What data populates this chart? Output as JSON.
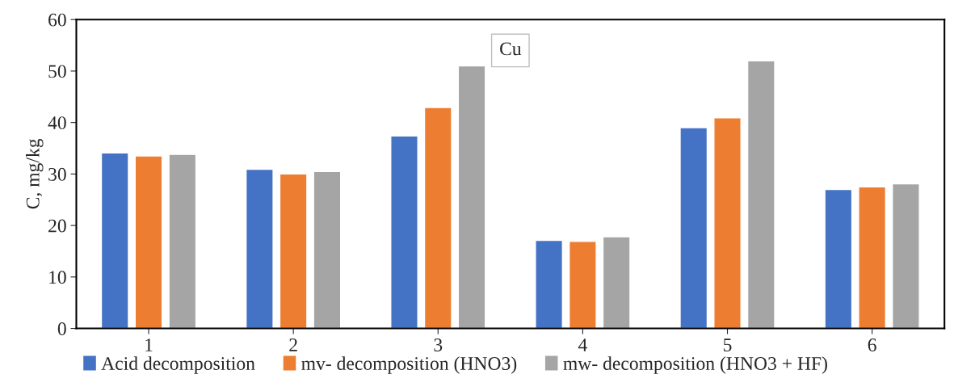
{
  "chart_data": {
    "type": "bar",
    "ylabel": "C, mg/kg",
    "categories": [
      "1",
      "2",
      "3",
      "4",
      "5",
      "6"
    ],
    "series": [
      {
        "name": "Acid decomposition",
        "color": "#4472c4",
        "values": [
          34.1,
          30.9,
          37.4,
          17.1,
          39.0,
          27.0
        ]
      },
      {
        "name": "mv- decomposition (HNO3)",
        "color": "#ed7d31",
        "values": [
          33.5,
          30.0,
          42.9,
          16.9,
          40.9,
          27.5
        ]
      },
      {
        "name": "mw- decomposition (HNO3 + HF)",
        "color": "#a5a5a5",
        "values": [
          33.8,
          30.5,
          51.0,
          17.8,
          52.0,
          28.1
        ]
      }
    ],
    "annotations": [
      "Cu"
    ],
    "ylim": [
      0,
      60
    ],
    "yticks": [
      0,
      10,
      20,
      30,
      40,
      50,
      60
    ],
    "grid": false,
    "legend": "bottom"
  }
}
